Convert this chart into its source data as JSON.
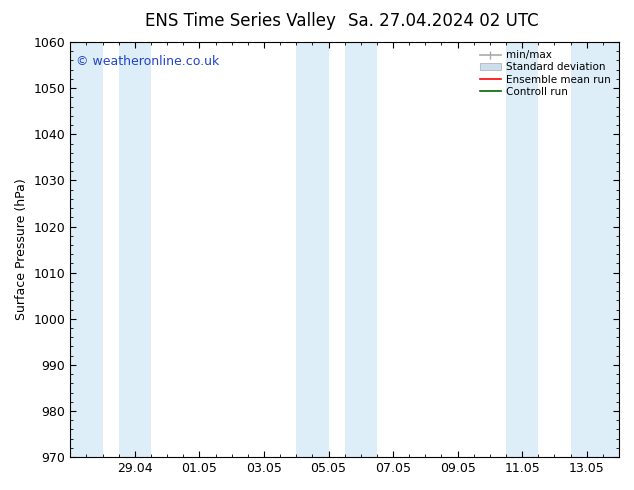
{
  "title": "ENS Time Series Valley",
  "title2": "Sa. 27.04.2024 02 UTC",
  "ylabel": "Surface Pressure (hPa)",
  "ylim": [
    970,
    1060
  ],
  "yticks": [
    970,
    980,
    990,
    1000,
    1010,
    1020,
    1030,
    1040,
    1050,
    1060
  ],
  "x_tick_labels": [
    "29.04",
    "01.05",
    "03.05",
    "05.05",
    "07.05",
    "09.05",
    "11.05",
    "13.05"
  ],
  "x_tick_positions": [
    2.0,
    4.0,
    6.0,
    8.0,
    10.0,
    12.0,
    14.0,
    16.0
  ],
  "xlim": [
    0.0,
    17.0
  ],
  "bg_color": "#ffffff",
  "plot_bg_color": "#ffffff",
  "band_color_light": "#ddeef8",
  "shaded_bands": [
    {
      "x_start": 0.0,
      "x_end": 1.0
    },
    {
      "x_start": 1.5,
      "x_end": 2.5
    },
    {
      "x_start": 7.0,
      "x_end": 8.0
    },
    {
      "x_start": 8.5,
      "x_end": 9.5
    },
    {
      "x_start": 13.5,
      "x_end": 14.5
    },
    {
      "x_start": 15.5,
      "x_end": 17.0
    }
  ],
  "legend_labels": [
    "min/max",
    "Standard deviation",
    "Ensemble mean run",
    "Controll run"
  ],
  "legend_line_color": "#aaaaaa",
  "legend_patch_color": "#ccddee",
  "legend_red": "#ff0000",
  "legend_green": "#006600",
  "watermark": "© weatheronline.co.uk",
  "watermark_color": "#2244cc",
  "title_fontsize": 12,
  "tick_fontsize": 9,
  "ylabel_fontsize": 9
}
